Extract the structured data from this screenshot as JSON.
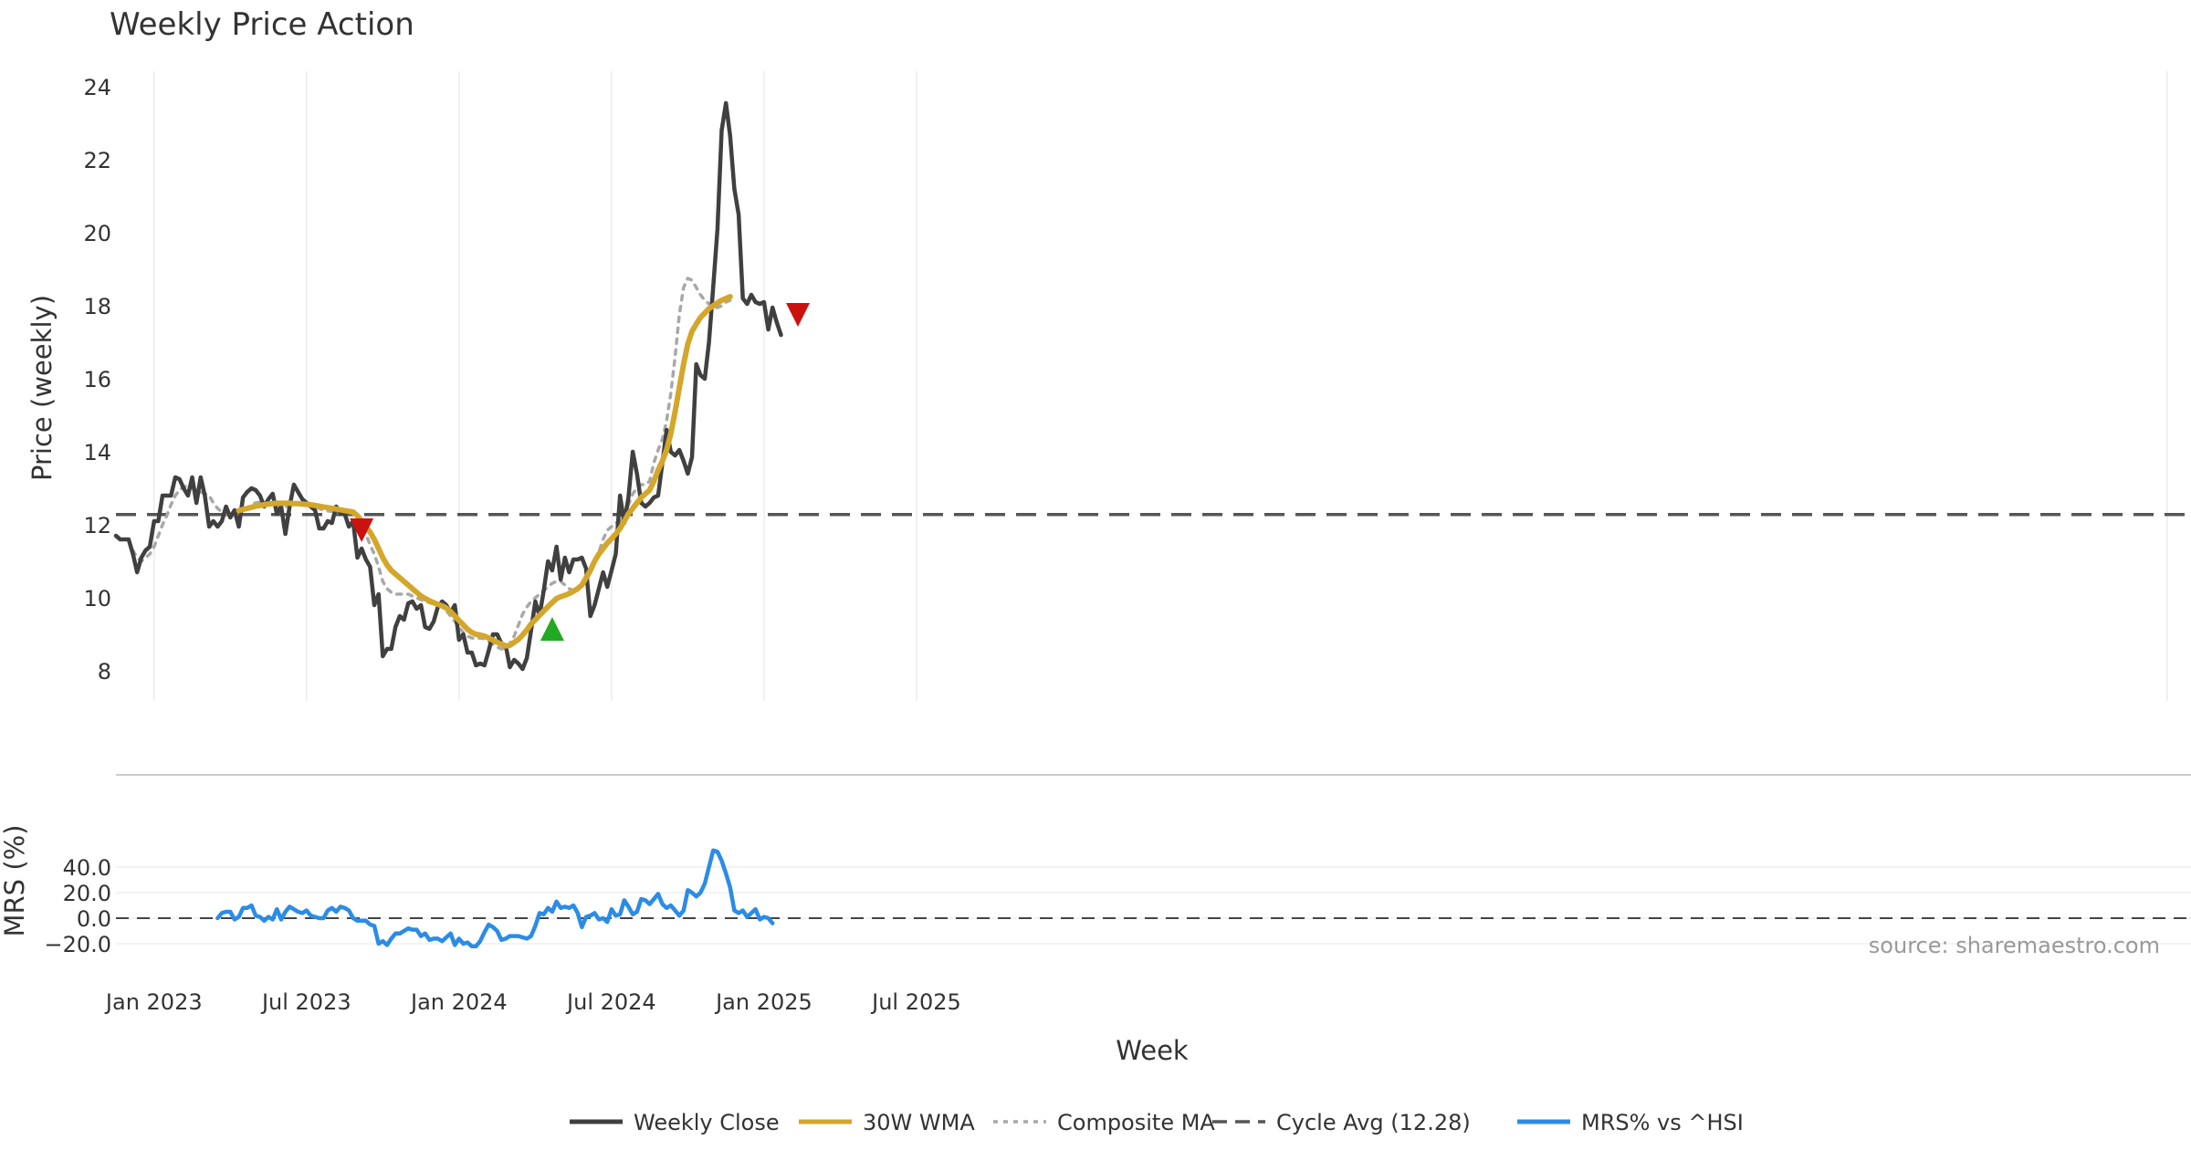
{
  "chart_data": {
    "type": "line",
    "title": "Weekly Price Action",
    "xlabel": "Week",
    "x_ticks": [
      "Jan 2023",
      "Jul 2023",
      "Jan 2024",
      "Jul 2024",
      "Jan 2025",
      "Jul 2025"
    ],
    "price_panel": {
      "ylabel": "Price (weekly)",
      "ylim": [
        7.2,
        24.5
      ],
      "y_ticks": [
        8,
        10,
        12,
        14,
        16,
        18,
        20,
        22,
        24
      ],
      "cycle_avg": 12.28,
      "series": [
        {
          "name": "Weekly Close",
          "color": "#404040",
          "start_week": 0,
          "values": [
            11.7,
            11.6,
            11.6,
            11.6,
            11.2,
            10.7,
            11.1,
            11.3,
            11.4,
            12.1,
            12.1,
            12.8,
            12.8,
            12.8,
            13.3,
            13.25,
            13.0,
            12.8,
            13.3,
            12.6,
            13.3,
            12.8,
            11.95,
            12.1,
            11.95,
            12.1,
            12.5,
            12.2,
            12.4,
            11.95,
            12.75,
            12.9,
            13.0,
            12.95,
            12.8,
            12.5,
            12.7,
            12.85,
            12.3,
            12.5,
            11.75,
            12.5,
            13.1,
            12.9,
            12.7,
            12.6,
            12.5,
            12.4,
            11.9,
            11.9,
            12.1,
            12.05,
            12.5,
            12.3,
            12.3,
            11.95,
            12.1,
            11.1,
            11.35,
            11.05,
            10.85,
            9.8,
            10.1,
            8.4,
            8.6,
            8.6,
            9.2,
            9.5,
            9.4,
            9.85,
            9.9,
            9.7,
            9.8,
            9.2,
            9.15,
            9.35,
            9.75,
            9.9,
            9.8,
            9.6,
            9.8,
            8.85,
            9.0,
            8.5,
            8.5,
            8.15,
            8.2,
            8.15,
            8.55,
            9.0,
            9.0,
            8.75,
            8.7,
            8.1,
            8.3,
            8.2,
            8.05,
            8.35,
            9.1,
            9.9,
            9.5,
            10.2,
            11.0,
            10.75,
            11.4,
            10.5,
            11.1,
            10.7,
            11.05,
            11.05,
            11.1,
            10.8,
            9.5,
            9.8,
            10.25,
            10.7,
            10.3,
            10.75,
            11.2,
            12.8,
            12.05,
            12.75,
            14.0,
            13.4,
            12.6,
            12.5,
            12.6,
            12.75,
            12.8,
            13.7,
            14.6,
            14.0,
            13.9,
            14.05,
            13.75,
            13.4,
            13.85,
            16.4,
            16.1,
            16.0,
            17.0,
            18.5,
            20.1,
            22.8,
            23.55,
            22.65,
            21.2,
            20.5,
            18.2,
            18.05,
            18.3,
            18.1,
            18.05,
            18.1,
            17.35,
            17.95,
            17.55,
            17.2
          ]
        },
        {
          "name": "30W WMA",
          "color": "#d4a62a",
          "start_week": 29,
          "values": [
            12.39,
            12.42,
            12.45,
            12.48,
            12.51,
            12.53,
            12.55,
            12.57,
            12.58,
            12.59,
            12.59,
            12.59,
            12.59,
            12.58,
            12.58,
            12.57,
            12.56,
            12.55,
            12.53,
            12.51,
            12.49,
            12.47,
            12.45,
            12.43,
            12.41,
            12.39,
            12.37,
            12.35,
            12.25,
            12.1,
            11.95,
            11.8,
            11.6,
            11.35,
            11.1,
            10.9,
            10.75,
            10.65,
            10.55,
            10.45,
            10.35,
            10.25,
            10.15,
            10.05,
            9.98,
            9.92,
            9.87,
            9.82,
            9.78,
            9.72,
            9.62,
            9.5,
            9.38,
            9.26,
            9.14,
            9.05,
            9.0,
            8.98,
            8.95,
            8.9,
            8.84,
            8.78,
            8.73,
            8.68,
            8.7,
            8.78,
            8.86,
            8.98,
            9.12,
            9.28,
            9.4,
            9.52,
            9.64,
            9.76,
            9.87,
            9.98,
            10.03,
            10.07,
            10.12,
            10.18,
            10.25,
            10.35,
            10.55,
            10.75,
            11.0,
            11.2,
            11.35,
            11.5,
            11.62,
            11.75,
            11.9,
            12.1,
            12.3,
            12.45,
            12.6,
            12.75,
            12.85,
            12.95,
            13.2,
            13.5,
            13.75,
            14.05,
            14.5,
            15.1,
            15.75,
            16.4,
            16.95,
            17.3,
            17.5,
            17.68,
            17.8,
            17.92,
            18.0,
            18.08,
            18.15,
            18.2,
            18.25
          ]
        },
        {
          "name": "Composite MA",
          "color": "#a8a8a8",
          "start_week": 4,
          "values": [
            11.3,
            11.1,
            11.0,
            11.1,
            11.2,
            11.4,
            11.7,
            12.0,
            12.25,
            12.55,
            12.8,
            12.95,
            13.05,
            13.05,
            13.0,
            12.95,
            12.9,
            12.85,
            12.8,
            12.6,
            12.45,
            12.35,
            12.3,
            12.3,
            12.3,
            12.3,
            12.35,
            12.45,
            12.55,
            12.6,
            12.62,
            12.6,
            12.55,
            12.5,
            12.48,
            12.48,
            12.5,
            12.52,
            12.55,
            12.58,
            12.6,
            12.6,
            12.58,
            12.52,
            12.45,
            12.4,
            12.38,
            12.37,
            12.35,
            12.3,
            12.32,
            12.35,
            12.3,
            12.15,
            11.95,
            11.75,
            11.45,
            11.2,
            10.85,
            10.45,
            10.25,
            10.15,
            10.1,
            10.1,
            10.1,
            10.1,
            10.05,
            10.0,
            9.95,
            9.9,
            9.87,
            9.83,
            9.8,
            9.75,
            9.65,
            9.5,
            9.35,
            9.2,
            9.05,
            8.95,
            8.9,
            8.88,
            8.9,
            8.88,
            8.8,
            8.72,
            8.65,
            8.6,
            8.62,
            8.75,
            8.95,
            9.25,
            9.55,
            9.75,
            9.9,
            10.0,
            10.1,
            10.2,
            10.3,
            10.4,
            10.45,
            10.45,
            10.35,
            10.25,
            10.2,
            10.25,
            10.35,
            10.45,
            10.7,
            10.95,
            11.25,
            11.6,
            11.85,
            11.95,
            12.05,
            12.1,
            12.25,
            12.55,
            12.85,
            13.0,
            13.1,
            13.1,
            13.2,
            13.7,
            14.05,
            14.35,
            14.85,
            15.6,
            16.6,
            17.75,
            18.5,
            18.75,
            18.7,
            18.5,
            18.3,
            18.15,
            18.05,
            17.95,
            17.95,
            18.0,
            18.1,
            18.15
          ]
        }
      ],
      "signals": [
        {
          "type": "sell",
          "label": "▼",
          "week": 58,
          "value": 11.85,
          "color": "#cc1111"
        },
        {
          "type": "buy",
          "label": "▲",
          "week": 103,
          "value": 9.15,
          "color": "#22aa22"
        },
        {
          "type": "sell",
          "label": "▼",
          "week": 161,
          "value": 17.75,
          "color": "#cc1111"
        }
      ]
    },
    "mrs_panel": {
      "ylabel": "MRS (%)",
      "ylim": [
        -25,
        55
      ],
      "y_ticks": [
        40.0,
        20.0,
        0.0,
        -20.0
      ],
      "y_tick_labels": [
        "40.0",
        "20.0",
        "0.0",
        "−20.0"
      ],
      "series": [
        {
          "name": "MRS% vs ^HSI",
          "color": "#2b8ce6",
          "start_week": 24,
          "values": [
            0,
            4,
            5,
            5,
            -1,
            1,
            8,
            8,
            10,
            2,
            1,
            -2,
            1,
            -1,
            7,
            -1,
            5,
            9,
            7,
            5,
            4,
            6,
            2,
            1,
            0,
            0,
            6,
            8,
            5,
            9,
            8,
            6,
            0,
            -2,
            -2,
            -2,
            -5,
            -6,
            -20,
            -18,
            -21,
            -16,
            -12,
            -12,
            -10,
            -8,
            -9,
            -9,
            -14,
            -12,
            -17,
            -16,
            -16,
            -18,
            -15,
            -12,
            -21,
            -16,
            -20,
            -19,
            -22,
            -22,
            -18,
            -11,
            -5,
            -7,
            -10,
            -17,
            -16,
            -14,
            -14,
            -14,
            -15,
            -16,
            -14,
            -6,
            4,
            3,
            8,
            5,
            13,
            8,
            9,
            8,
            10,
            4,
            -7,
            1,
            2,
            4,
            -1,
            0,
            -3,
            7,
            2,
            3,
            14,
            9,
            3,
            5,
            15,
            14,
            11,
            15,
            19,
            11,
            8,
            10,
            6,
            2,
            6,
            22,
            20,
            17,
            20,
            27,
            40,
            53,
            52,
            45,
            35,
            24,
            6,
            4,
            6,
            1,
            4,
            7,
            -1,
            1,
            0,
            -4
          ]
        }
      ]
    },
    "legend": [
      {
        "name": "Weekly Close",
        "color": "#404040",
        "style": "solid"
      },
      {
        "name": "30W WMA",
        "color": "#d4a62a",
        "style": "solid"
      },
      {
        "name": "Composite MA",
        "color": "#a8a8a8",
        "style": "dotted"
      },
      {
        "name": "Cycle Avg (12.28)",
        "color": "#555555",
        "style": "dashed"
      },
      {
        "name": "MRS% vs ^HSI",
        "color": "#2b8ce6",
        "style": "solid"
      }
    ],
    "annotation": "source: sharemaestro.com"
  }
}
